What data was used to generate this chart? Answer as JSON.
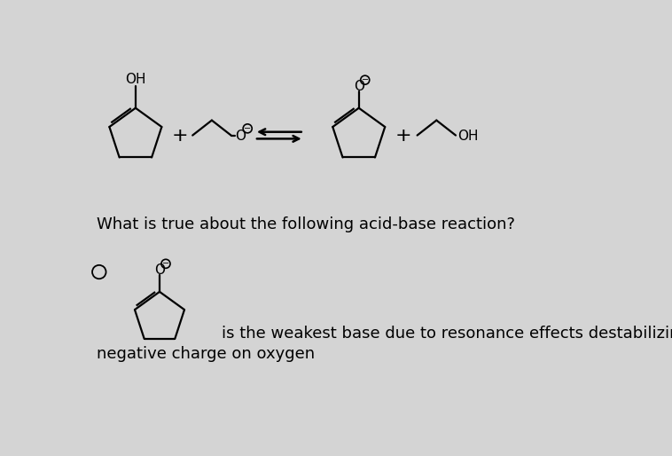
{
  "bg_color": "#d4d4d4",
  "text_color": "#000000",
  "question_text": "What is true about the following acid-base reaction?",
  "answer_text": "is the weakest base due to resonance effects destabilizing the",
  "answer_text2": "negative charge on oxygen",
  "font_size_question": 13,
  "font_size_answer": 13,
  "lw": 1.6
}
